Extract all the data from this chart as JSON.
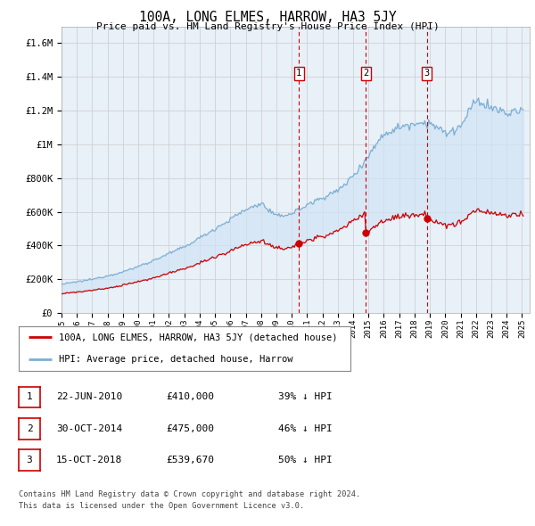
{
  "title": "100A, LONG ELMES, HARROW, HA3 5JY",
  "subtitle": "Price paid vs. HM Land Registry's House Price Index (HPI)",
  "hpi_label": "HPI: Average price, detached house, Harrow",
  "property_label": "100A, LONG ELMES, HARROW, HA3 5JY (detached house)",
  "footer_line1": "Contains HM Land Registry data © Crown copyright and database right 2024.",
  "footer_line2": "This data is licensed under the Open Government Licence v3.0.",
  "transactions": [
    {
      "num": 1,
      "date": "22-JUN-2010",
      "price": "£410,000",
      "pct": "39% ↓ HPI",
      "year": 2010.47
    },
    {
      "num": 2,
      "date": "30-OCT-2014",
      "price": "£475,000",
      "pct": "46% ↓ HPI",
      "year": 2014.83
    },
    {
      "num": 3,
      "date": "15-OCT-2018",
      "price": "£539,670",
      "pct": "50% ↓ HPI",
      "year": 2018.79
    }
  ],
  "ylim": [
    0,
    1700000
  ],
  "yticks": [
    0,
    200000,
    400000,
    600000,
    800000,
    1000000,
    1200000,
    1400000,
    1600000
  ],
  "ytick_labels": [
    "£0",
    "£200K",
    "£400K",
    "£600K",
    "£800K",
    "£1M",
    "£1.2M",
    "£1.4M",
    "£1.6M"
  ],
  "hpi_color": "#7bafd4",
  "hpi_fill_color": "#d0e4f5",
  "property_color": "#cc0000",
  "vline_color": "#cc0000",
  "bg_color": "#e8f0f8",
  "plot_bg": "#ffffff",
  "grid_color": "#cccccc",
  "fig_width": 6.0,
  "fig_height": 5.9,
  "dpi": 100
}
